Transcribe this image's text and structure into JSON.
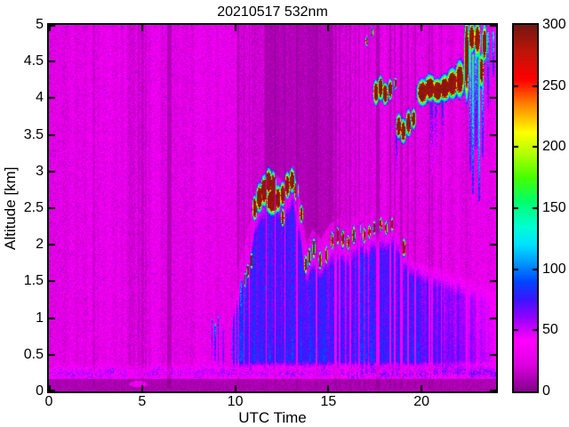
{
  "chart_data": {
    "type": "heatmap",
    "title": "20210517 532nm",
    "xlabel": "UTC Time",
    "ylabel": "Altitude [km]",
    "xlim": [
      0,
      24
    ],
    "ylim": [
      0,
      5
    ],
    "xticks": [
      0,
      5,
      10,
      15,
      20
    ],
    "xtick_labels": [
      "0",
      "5",
      "10",
      "15",
      "20"
    ],
    "yticks": [
      0,
      0.5,
      1,
      1.5,
      2,
      2.5,
      3,
      3.5,
      4,
      4.5,
      5
    ],
    "ytick_labels": [
      "0",
      "0.5",
      "1",
      "1.5",
      "2",
      "2.5",
      "3",
      "3.5",
      "4",
      "4.5",
      "5"
    ],
    "grid": false,
    "colorbar": {
      "min": 0,
      "max": 300,
      "ticks": [
        0,
        50,
        100,
        150,
        200,
        250,
        300
      ],
      "tick_labels": [
        "0",
        "50",
        "100",
        "150",
        "200",
        "250",
        "300"
      ],
      "position": "right"
    },
    "colormap_stops": [
      [
        0,
        "#82008A"
      ],
      [
        22,
        "#DE00E2"
      ],
      [
        42,
        "#FF00FF"
      ],
      [
        60,
        "#9600FF"
      ],
      [
        75,
        "#3C14FF"
      ],
      [
        90,
        "#0046FF"
      ],
      [
        105,
        "#0096FF"
      ],
      [
        120,
        "#00E1FF"
      ],
      [
        135,
        "#00FFD2"
      ],
      [
        155,
        "#00FF6E"
      ],
      [
        175,
        "#46FF00"
      ],
      [
        195,
        "#B4FF00"
      ],
      [
        212,
        "#FFFF00"
      ],
      [
        235,
        "#FF8200"
      ],
      [
        255,
        "#FF0000"
      ],
      [
        278,
        "#BE140A"
      ],
      [
        300,
        "#731610"
      ]
    ],
    "background_value": 27,
    "noise_amplitude": 22,
    "surface": {
      "dark_top_km": 0.17,
      "dark_value": 10,
      "band_center_km": 0.25,
      "band_value_peak": 42,
      "band_width_km": 0.06
    },
    "boundary_layer": {
      "fill_value": 75,
      "start_utc": 7.6,
      "full_utc": 10.5,
      "late_fade_start_utc": 19.5,
      "top_profile": [
        [
          7.6,
          0.35
        ],
        [
          8.2,
          0.75
        ],
        [
          9.0,
          1.02
        ],
        [
          9.8,
          1.12
        ],
        [
          10.3,
          1.55
        ],
        [
          10.8,
          2.0
        ],
        [
          11.1,
          2.45
        ],
        [
          11.5,
          2.6
        ],
        [
          12.0,
          2.72
        ],
        [
          12.6,
          2.55
        ],
        [
          13.1,
          2.78
        ],
        [
          13.5,
          2.3
        ],
        [
          13.8,
          1.72
        ],
        [
          14.2,
          1.92
        ],
        [
          14.6,
          1.78
        ],
        [
          15.1,
          2.0
        ],
        [
          15.6,
          2.06
        ],
        [
          16.1,
          2.0
        ],
        [
          16.6,
          2.16
        ],
        [
          17.1,
          2.1
        ],
        [
          17.5,
          2.2
        ],
        [
          18.1,
          2.18
        ],
        [
          18.55,
          2.26
        ],
        [
          19.1,
          1.92
        ],
        [
          19.6,
          1.8
        ],
        [
          20.2,
          1.76
        ],
        [
          21.0,
          1.7
        ],
        [
          22.0,
          1.62
        ],
        [
          23.0,
          1.52
        ],
        [
          24.0,
          1.45
        ]
      ]
    },
    "attenuated_regions": [
      {
        "t0": 11.55,
        "t1": 15.28,
        "factor": 0.42
      },
      {
        "t0": 10.05,
        "t1": 11.55,
        "factor": 0.72
      },
      {
        "t0": 15.28,
        "t1": 17.4,
        "factor": 0.85
      }
    ],
    "dark_stripes": [
      [
        2.33,
        2.46,
        0.6
      ],
      [
        4.3,
        4.62,
        0.72
      ],
      [
        4.75,
        4.88,
        0.66
      ],
      [
        4.98,
        5.1,
        0.62
      ],
      [
        5.16,
        5.26,
        0.66
      ],
      [
        6.36,
        6.58,
        0.42
      ],
      [
        10.13,
        10.19,
        0.62
      ],
      [
        10.44,
        10.5,
        0.62
      ],
      [
        10.74,
        10.8,
        0.58
      ],
      [
        11.63,
        11.71,
        0.5
      ],
      [
        12.11,
        12.19,
        0.52
      ],
      [
        12.63,
        12.69,
        0.62
      ],
      [
        13.26,
        13.34,
        0.52
      ],
      [
        14.31,
        14.43,
        0.55
      ],
      [
        15.32,
        15.44,
        0.55
      ],
      [
        15.57,
        15.65,
        0.6
      ],
      [
        15.9,
        15.97,
        0.72
      ],
      [
        16.12,
        16.2,
        0.6
      ],
      [
        16.42,
        16.49,
        0.72
      ],
      [
        16.62,
        16.7,
        0.6
      ],
      [
        16.9,
        16.97,
        0.72
      ],
      [
        17.12,
        17.19,
        0.72
      ],
      [
        17.57,
        17.73,
        0.42
      ],
      [
        18.27,
        18.38,
        0.52
      ],
      [
        18.52,
        18.6,
        0.55
      ],
      [
        18.87,
        18.97,
        0.52
      ],
      [
        19.22,
        19.32,
        0.55
      ],
      [
        19.62,
        19.72,
        0.55
      ],
      [
        20.37,
        20.47,
        0.58
      ],
      [
        20.52,
        20.6,
        0.62
      ],
      [
        21.03,
        21.1,
        0.6
      ],
      [
        22.4,
        22.46,
        0.75
      ]
    ],
    "clouds": [
      [
        11.05,
        2.5,
        0.1,
        0.12
      ],
      [
        11.3,
        2.64,
        0.13,
        0.14
      ],
      [
        11.55,
        2.74,
        0.14,
        0.15
      ],
      [
        11.8,
        2.86,
        0.14,
        0.13
      ],
      [
        12.05,
        2.79,
        0.12,
        0.15
      ],
      [
        12.3,
        2.63,
        0.12,
        0.13
      ],
      [
        12.55,
        2.69,
        0.11,
        0.12
      ],
      [
        12.8,
        2.81,
        0.11,
        0.13
      ],
      [
        13.05,
        2.88,
        0.11,
        0.12
      ],
      [
        13.28,
        2.74,
        0.09,
        0.11
      ],
      [
        12.0,
        2.6,
        0.28,
        0.14
      ],
      [
        12.55,
        2.37,
        0.07,
        0.09
      ],
      [
        13.55,
        2.42,
        0.07,
        0.09
      ],
      [
        10.5,
        1.52,
        0.05,
        0.07
      ],
      [
        10.68,
        1.64,
        0.05,
        0.07
      ],
      [
        10.88,
        1.78,
        0.05,
        0.08
      ],
      [
        13.78,
        1.73,
        0.06,
        0.09
      ],
      [
        13.98,
        1.84,
        0.06,
        0.09
      ],
      [
        14.22,
        1.95,
        0.06,
        0.1
      ],
      [
        14.56,
        1.79,
        0.06,
        0.09
      ],
      [
        14.9,
        1.86,
        0.05,
        0.09
      ],
      [
        15.2,
        2.06,
        0.05,
        0.09
      ],
      [
        15.5,
        2.12,
        0.05,
        0.09
      ],
      [
        15.78,
        2.08,
        0.06,
        0.09
      ],
      [
        16.06,
        2.03,
        0.05,
        0.08
      ],
      [
        16.36,
        2.13,
        0.06,
        0.09
      ],
      [
        16.66,
        2.22,
        0.05,
        0.09
      ],
      [
        16.92,
        2.13,
        0.05,
        0.08
      ],
      [
        17.2,
        2.18,
        0.05,
        0.07
      ],
      [
        17.46,
        2.23,
        0.05,
        0.07
      ],
      [
        17.82,
        2.28,
        0.05,
        0.07
      ],
      [
        18.1,
        2.23,
        0.05,
        0.07
      ],
      [
        18.42,
        2.28,
        0.04,
        0.07
      ],
      [
        19.05,
        1.96,
        0.07,
        0.09
      ],
      [
        17.55,
        4.08,
        0.11,
        0.12
      ],
      [
        17.8,
        4.14,
        0.11,
        0.12
      ],
      [
        18.05,
        4.06,
        0.11,
        0.11
      ],
      [
        18.32,
        4.12,
        0.09,
        0.1
      ],
      [
        18.6,
        4.2,
        0.05,
        0.06
      ],
      [
        18.78,
        3.62,
        0.11,
        0.12
      ],
      [
        19.02,
        3.55,
        0.11,
        0.12
      ],
      [
        19.3,
        3.66,
        0.11,
        0.13
      ],
      [
        19.58,
        3.72,
        0.09,
        0.1
      ],
      [
        20.05,
        4.08,
        0.22,
        0.13
      ],
      [
        20.45,
        4.14,
        0.22,
        0.13
      ],
      [
        20.85,
        4.1,
        0.22,
        0.12
      ],
      [
        21.25,
        4.14,
        0.22,
        0.13
      ],
      [
        21.65,
        4.2,
        0.22,
        0.15
      ],
      [
        22.05,
        4.26,
        0.18,
        0.18
      ],
      [
        22.42,
        4.55,
        0.1,
        0.42
      ],
      [
        22.7,
        4.83,
        0.13,
        0.15
      ],
      [
        23.0,
        4.8,
        0.13,
        0.17
      ],
      [
        23.22,
        4.38,
        0.09,
        0.16
      ],
      [
        23.38,
        4.75,
        0.1,
        0.18
      ],
      [
        17.05,
        4.78,
        0.04,
        0.05
      ],
      [
        17.35,
        4.9,
        0.04,
        0.05
      ]
    ],
    "fall_streaks": [
      [
        8.75,
        1.0,
        0.42,
        0.035,
        95
      ],
      [
        8.92,
        0.92,
        0.4,
        0.03,
        100
      ],
      [
        9.08,
        1.05,
        0.42,
        0.03,
        92
      ],
      [
        10.3,
        1.5,
        0.6,
        0.035,
        105
      ],
      [
        10.56,
        1.62,
        0.7,
        0.035,
        110
      ],
      [
        11.62,
        1.45,
        1.15,
        0.03,
        100
      ],
      [
        18.66,
        3.5,
        2.9,
        0.04,
        78
      ],
      [
        20.55,
        3.95,
        2.95,
        0.06,
        72
      ],
      [
        20.78,
        3.9,
        3.1,
        0.05,
        66
      ],
      [
        21.15,
        4.0,
        3.4,
        0.04,
        85
      ],
      [
        22.62,
        4.7,
        3.0,
        0.06,
        135
      ],
      [
        22.78,
        4.6,
        2.7,
        0.05,
        150
      ],
      [
        22.92,
        4.8,
        3.3,
        0.06,
        125
      ],
      [
        23.1,
        4.68,
        2.6,
        0.06,
        160
      ],
      [
        23.3,
        4.6,
        3.2,
        0.05,
        135
      ],
      [
        23.55,
        4.9,
        3.85,
        0.05,
        115
      ],
      [
        23.85,
        4.92,
        4.3,
        0.05,
        125
      ]
    ],
    "warm_spots": [
      [
        4.8,
        0.1,
        0.5,
        0.045,
        36
      ]
    ]
  }
}
